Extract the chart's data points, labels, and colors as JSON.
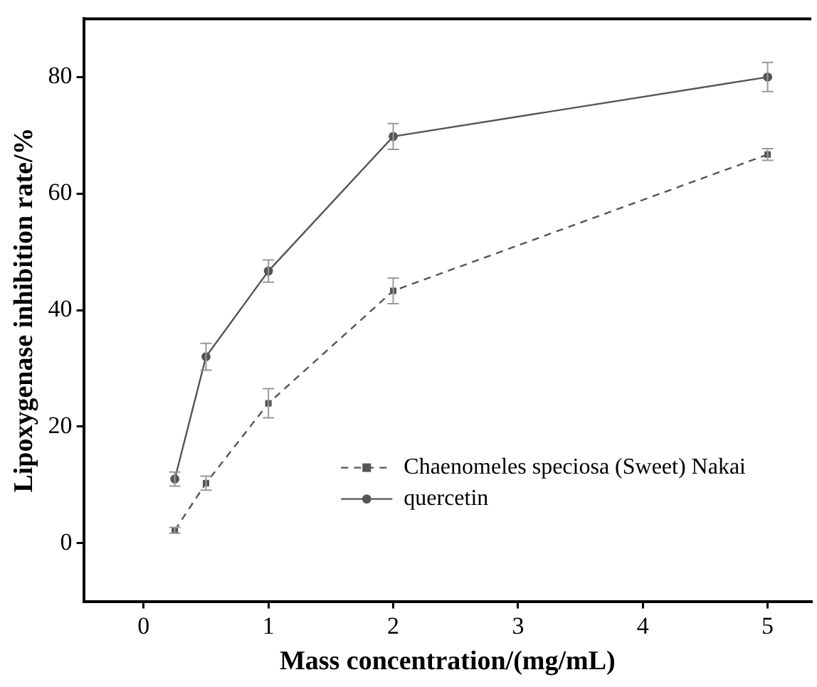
{
  "chart_data": {
    "type": "line",
    "xlabel": "Mass concentration/(mg/mL)",
    "ylabel": "Lipoxygenase inhibition rate/%",
    "x": [
      0.25,
      0.5,
      1,
      2,
      5
    ],
    "series": [
      {
        "name": "Chaenomeles speciosa (Sweet) Nakai",
        "color": "#555555",
        "values": [
          2.2,
          10.3,
          24,
          43.3,
          66.7
        ],
        "errors": [
          0.5,
          1.2,
          2.5,
          2.2,
          1.0
        ],
        "marker": "square",
        "line_style": "dashed"
      },
      {
        "name": "quercetin",
        "color": "#555555",
        "values": [
          11,
          32,
          46.7,
          69.8,
          80
        ],
        "errors": [
          1.2,
          2.3,
          1.9,
          2.2,
          2.5
        ],
        "marker": "circle",
        "line_style": "solid"
      }
    ],
    "xlim": [
      -0.48,
      5.35
    ],
    "ylim": [
      -10,
      90
    ],
    "xticks": [
      0,
      1,
      2,
      3,
      4,
      5
    ],
    "yticks": [
      0,
      20,
      40,
      60,
      80
    ],
    "grid": false,
    "legend": "bottom right"
  }
}
